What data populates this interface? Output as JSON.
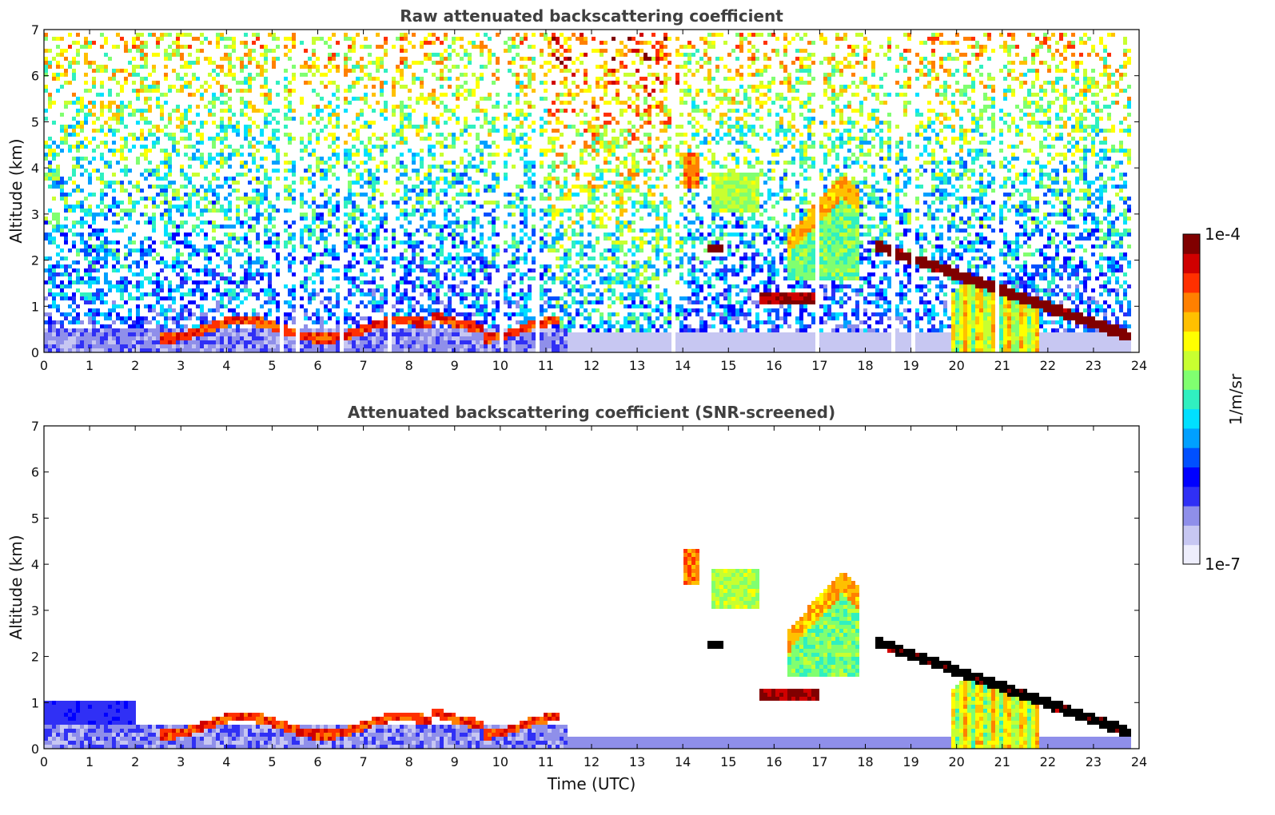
{
  "chart_data": [
    {
      "type": "heatmap",
      "title": "Raw attenuated backscattering coefficient",
      "xlabel": "",
      "ylabel": "Altitude (km)",
      "xlim": [
        0,
        24
      ],
      "ylim": [
        0,
        7
      ],
      "x_ticks": [
        "0",
        "1",
        "2",
        "3",
        "4",
        "5",
        "6",
        "7",
        "8",
        "9",
        "10",
        "11",
        "12",
        "13",
        "14",
        "15",
        "16",
        "17",
        "18",
        "19",
        "20",
        "21",
        "22",
        "23",
        "24"
      ],
      "y_ticks": [
        "0",
        "1",
        "2",
        "3",
        "4",
        "5",
        "6",
        "7"
      ],
      "colorscale": "log",
      "features": [
        {
          "name": "boundary-layer",
          "x_range": [
            0,
            11.5
          ],
          "alt_range": [
            0,
            0.5
          ],
          "level": 0.15
        },
        {
          "name": "low-cloud-band",
          "x_range": [
            2.5,
            11.3
          ],
          "alt_range": [
            0.35,
            0.9
          ],
          "level": 0.85
        },
        {
          "name": "cirrus-14h",
          "x_range": [
            14,
            14.4
          ],
          "alt_range": [
            3.6,
            4.4
          ],
          "level": 0.8
        },
        {
          "name": "cirrus-15h",
          "x_range": [
            14.6,
            15.7
          ],
          "alt_range": [
            3.1,
            3.9
          ],
          "level": 0.6
        },
        {
          "name": "thin-layer-14.5h",
          "x_range": [
            14.5,
            14.9
          ],
          "alt_range": [
            2.2,
            2.4
          ],
          "level": 1.0
        },
        {
          "name": "cloud-16h",
          "x_range": [
            15.7,
            17
          ],
          "alt_range": [
            1.05,
            1.35
          ],
          "level": 0.95
        },
        {
          "name": "virga-17h",
          "x_range": [
            16.3,
            17.9
          ],
          "alt_range": [
            1.6,
            4.0
          ],
          "level": 0.55
        },
        {
          "name": "descending-layer",
          "x_range": [
            18.2,
            23.8
          ],
          "alt_range": [
            0.3,
            2.4
          ],
          "level": 1.0
        },
        {
          "name": "precip-20h",
          "x_range": [
            19.9,
            21.8
          ],
          "alt_range": [
            0,
            1.7
          ],
          "level": 0.65
        }
      ]
    },
    {
      "type": "heatmap",
      "title": "Attenuated backscattering coefficient (SNR-screened)",
      "xlabel": "Time (UTC)",
      "ylabel": "Altitude (km)",
      "xlim": [
        0,
        24
      ],
      "ylim": [
        0,
        7
      ],
      "x_ticks": [
        "0",
        "1",
        "2",
        "3",
        "4",
        "5",
        "6",
        "7",
        "8",
        "9",
        "10",
        "11",
        "12",
        "13",
        "14",
        "15",
        "16",
        "17",
        "18",
        "19",
        "20",
        "21",
        "22",
        "23",
        "24"
      ],
      "y_ticks": [
        "0",
        "1",
        "2",
        "3",
        "4",
        "5",
        "6",
        "7"
      ],
      "colorscale": "log"
    }
  ],
  "colorbar": {
    "label": "1/m/sr",
    "max_label": "1e-4",
    "min_label": "1e-7",
    "colors": [
      "#eeeefc",
      "#c7c7f2",
      "#8f8fea",
      "#3030f5",
      "#0000ff",
      "#0050ff",
      "#00a0ff",
      "#00e0ff",
      "#30f0c0",
      "#80ff70",
      "#c8ff30",
      "#ffff00",
      "#ffc000",
      "#ff8000",
      "#ff3000",
      "#d00000",
      "#800000"
    ]
  }
}
